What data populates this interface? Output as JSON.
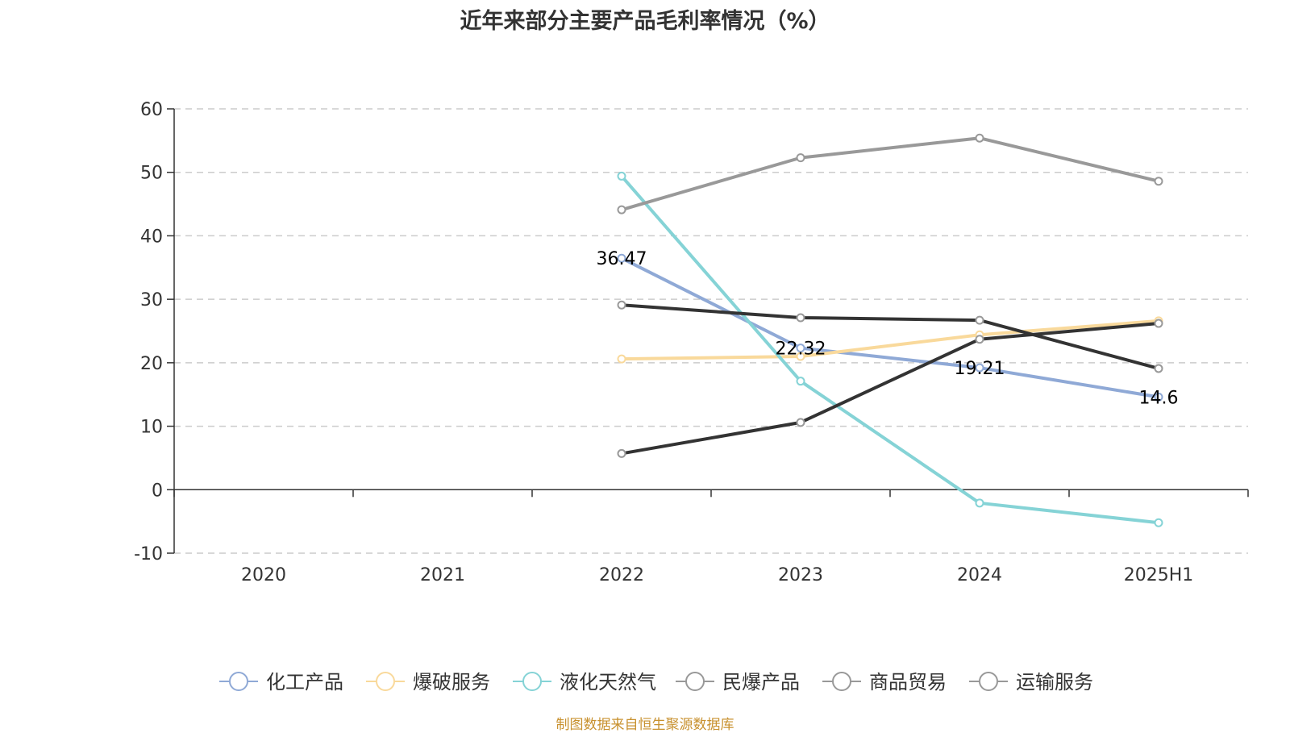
{
  "title": "近年来部分主要产品毛利率情况（%）",
  "source": "制图数据来自恒生聚源数据库",
  "chart_data": {
    "type": "line",
    "categories": [
      "2020",
      "2021",
      "2022",
      "2023",
      "2024",
      "2025H1"
    ],
    "ylim": [
      -10,
      60
    ],
    "yticks": [
      -10,
      0,
      10,
      20,
      30,
      40,
      50,
      60
    ],
    "grid": true,
    "legend_position": "bottom",
    "series": [
      {
        "name": "化工产品",
        "color": "#8fa9d6",
        "values": [
          null,
          null,
          36.47,
          22.32,
          19.21,
          14.6
        ],
        "labeled": true
      },
      {
        "name": "爆破服务",
        "color": "#f9d99b",
        "values": [
          null,
          null,
          20.6,
          21.0,
          24.4,
          26.6
        ],
        "labeled": false
      },
      {
        "name": "液化天然气",
        "color": "#85d3d6",
        "values": [
          null,
          null,
          49.4,
          17.1,
          -2.1,
          -5.2
        ],
        "labeled": false
      },
      {
        "name": "民爆产品",
        "color": "#333333",
        "values": [
          null,
          null,
          29.1,
          27.1,
          26.7,
          19.1
        ],
        "labeled": false
      },
      {
        "name": "商品贸易",
        "color": "#333333",
        "values": [
          null,
          null,
          5.7,
          10.6,
          23.7,
          26.2
        ],
        "labeled": false
      },
      {
        "name": "运输服务",
        "color": "#999999",
        "values": [
          null,
          null,
          44.1,
          52.3,
          55.4,
          48.6
        ],
        "labeled": false
      }
    ],
    "legend_marker_color": "#999999"
  }
}
